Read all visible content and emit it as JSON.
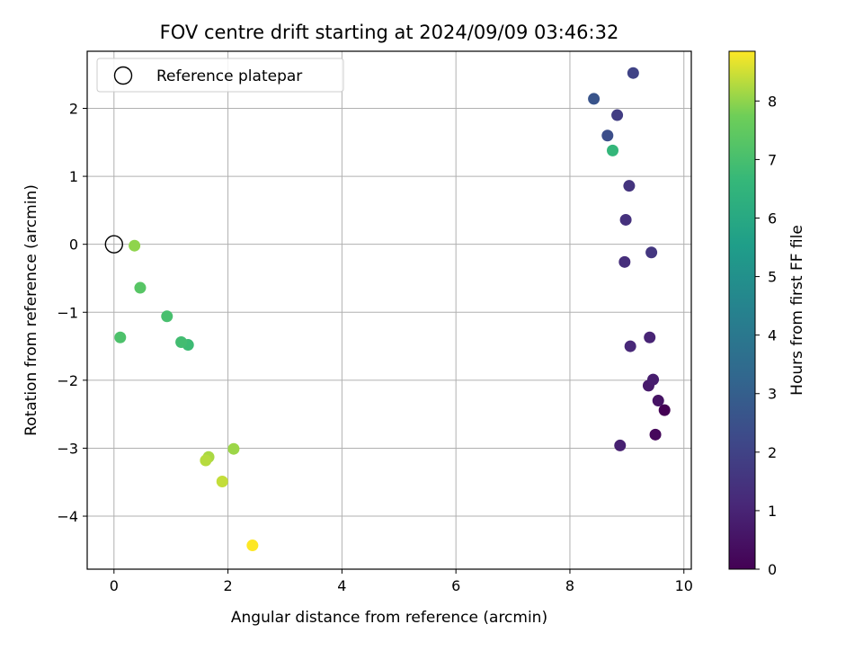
{
  "chart_data": {
    "type": "scatter",
    "title": "FOV centre drift starting at 2024/09/09 03:46:32",
    "xlabel": "Angular distance from reference (arcmin)",
    "ylabel": "Rotation from reference (arcmin)",
    "xlim": [
      -0.47,
      10.13
    ],
    "ylim": [
      -4.78,
      2.84
    ],
    "xticks": [
      0,
      2,
      4,
      6,
      8,
      10
    ],
    "yticks": [
      -4,
      -3,
      -2,
      -1,
      0,
      1,
      2
    ],
    "xtick_labels": [
      "0",
      "2",
      "4",
      "6",
      "8",
      "10"
    ],
    "ytick_labels": [
      "−4",
      "−3",
      "−2",
      "−1",
      "0",
      "1",
      "2"
    ],
    "grid": true,
    "legend": {
      "placement": "upper-left",
      "entries": [
        "Reference platepar"
      ]
    },
    "reference_point": {
      "x": 0,
      "y": 0
    },
    "colorbar": {
      "label": "Hours from first FF file",
      "colormap": "viridis",
      "range": [
        0,
        8.85
      ],
      "ticks": [
        0,
        1,
        2,
        3,
        4,
        5,
        6,
        7,
        8
      ],
      "tick_labels": [
        "0",
        "1",
        "2",
        "3",
        "4",
        "5",
        "6",
        "7",
        "8"
      ]
    },
    "points": [
      {
        "x": 9.66,
        "y": -2.44,
        "hours": 0.0
      },
      {
        "x": 9.5,
        "y": -2.8,
        "hours": 0.2
      },
      {
        "x": 9.55,
        "y": -2.3,
        "hours": 0.5
      },
      {
        "x": 9.38,
        "y": -2.08,
        "hours": 0.7
      },
      {
        "x": 9.46,
        "y": -1.99,
        "hours": 0.8
      },
      {
        "x": 8.88,
        "y": -2.96,
        "hours": 0.9
      },
      {
        "x": 9.4,
        "y": -1.37,
        "hours": 1.0
      },
      {
        "x": 9.06,
        "y": -1.5,
        "hours": 1.1
      },
      {
        "x": 8.96,
        "y": -0.26,
        "hours": 1.3
      },
      {
        "x": 8.98,
        "y": 0.36,
        "hours": 1.4
      },
      {
        "x": 9.43,
        "y": -0.12,
        "hours": 1.6
      },
      {
        "x": 9.04,
        "y": 0.86,
        "hours": 1.5
      },
      {
        "x": 8.83,
        "y": 1.9,
        "hours": 1.8
      },
      {
        "x": 9.11,
        "y": 2.52,
        "hours": 2.0
      },
      {
        "x": 8.66,
        "y": 1.6,
        "hours": 2.4
      },
      {
        "x": 8.42,
        "y": 2.14,
        "hours": 2.6
      },
      {
        "x": 8.75,
        "y": 1.38,
        "hours": 6.6
      },
      {
        "x": 1.3,
        "y": -1.48,
        "hours": 6.8
      },
      {
        "x": 1.18,
        "y": -1.44,
        "hours": 6.9
      },
      {
        "x": 0.93,
        "y": -1.06,
        "hours": 7.0
      },
      {
        "x": 0.11,
        "y": -1.37,
        "hours": 7.1
      },
      {
        "x": 0.46,
        "y": -0.64,
        "hours": 7.3
      },
      {
        "x": 0.36,
        "y": -0.02,
        "hours": 8.0
      },
      {
        "x": 2.1,
        "y": -3.01,
        "hours": 8.1
      },
      {
        "x": 1.66,
        "y": -3.13,
        "hours": 8.2
      },
      {
        "x": 1.61,
        "y": -3.18,
        "hours": 8.3
      },
      {
        "x": 1.9,
        "y": -3.49,
        "hours": 8.4
      },
      {
        "x": 2.43,
        "y": -4.43,
        "hours": 8.85
      }
    ]
  }
}
